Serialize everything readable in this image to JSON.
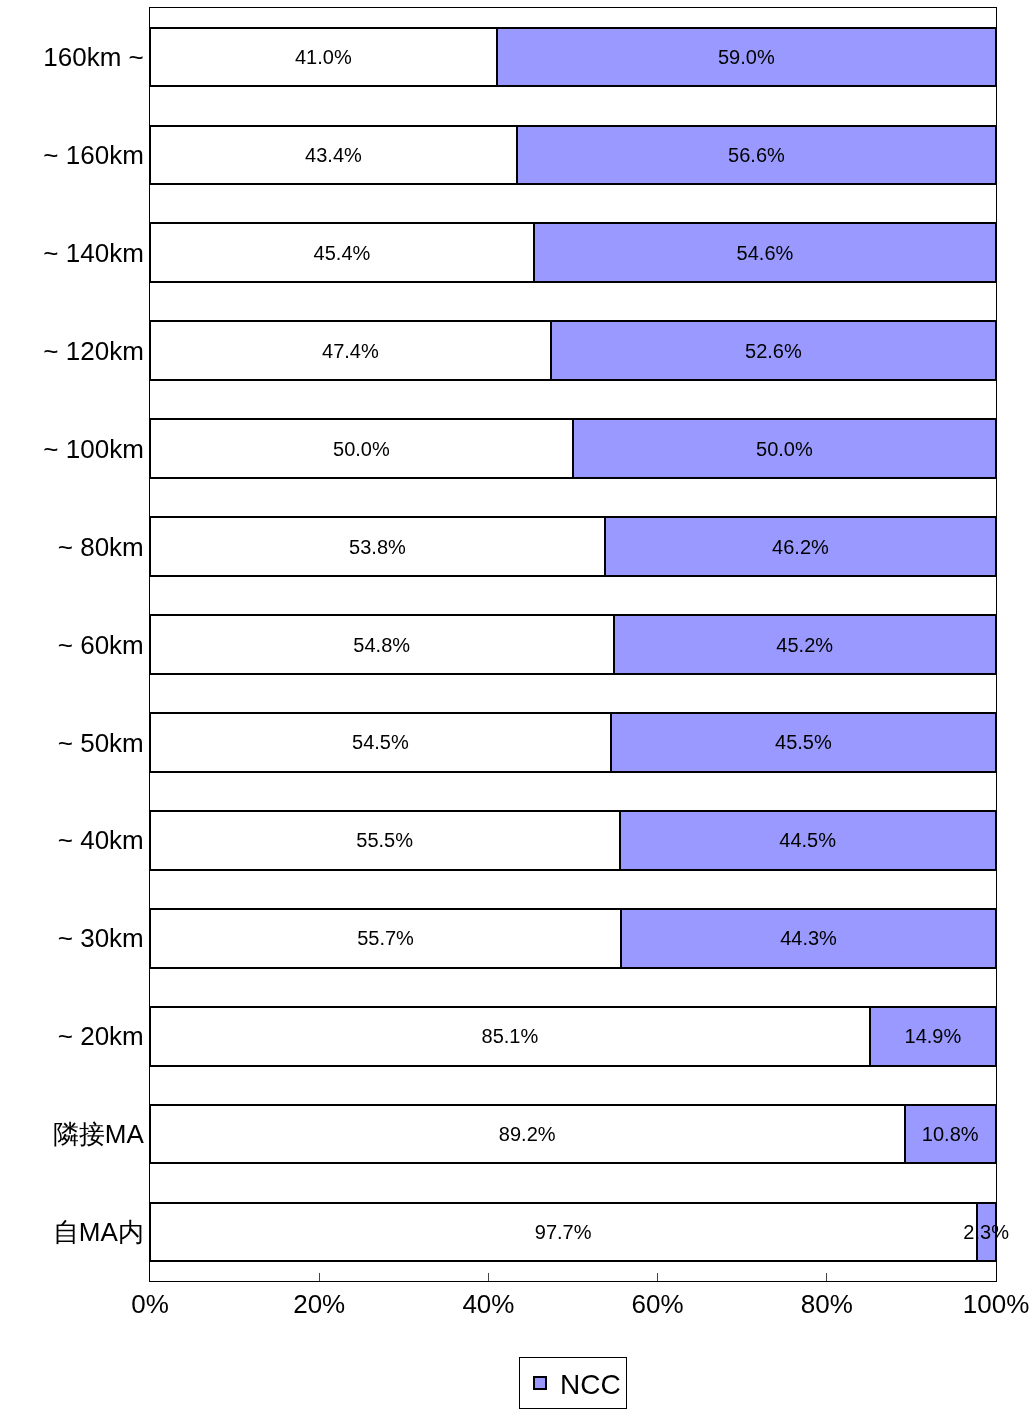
{
  "chart_data": {
    "type": "bar",
    "orientation": "horizontal",
    "stacked": true,
    "categories": [
      "160km ~",
      "~ 160km",
      "~ 140km",
      "~ 120km",
      "~ 100km",
      "~ 80km",
      "~ 60km",
      "~ 50km",
      "~ 40km",
      "~ 30km",
      "~ 20km",
      "隣接MA",
      "自MA内"
    ],
    "series": [
      {
        "color": "#ffffff",
        "values": [
          41.0,
          43.4,
          45.4,
          47.4,
          50.0,
          53.8,
          54.8,
          54.5,
          55.5,
          55.7,
          85.1,
          89.2,
          97.7
        ],
        "value_labels": [
          "41.0%",
          "43.4%",
          "45.4%",
          "47.4%",
          "50.0%",
          "53.8%",
          "54.8%",
          "54.5%",
          "55.5%",
          "55.7%",
          "85.1%",
          "89.2%",
          "97.7%"
        ]
      },
      {
        "name": "NCC",
        "color": "#9999ff",
        "values": [
          59.0,
          56.6,
          54.6,
          52.6,
          50.0,
          46.2,
          45.2,
          45.5,
          44.5,
          44.3,
          14.9,
          10.8,
          2.3
        ],
        "value_labels": [
          "59.0%",
          "56.6%",
          "54.6%",
          "52.6%",
          "50.0%",
          "46.2%",
          "45.2%",
          "45.5%",
          "44.5%",
          "44.3%",
          "14.9%",
          "10.8%",
          "2.3%"
        ]
      }
    ],
    "xlim": [
      0,
      100
    ],
    "xticks": [
      {
        "value": 0,
        "label": "0%"
      },
      {
        "value": 20,
        "label": "20%"
      },
      {
        "value": 40,
        "label": "40%"
      },
      {
        "value": 60,
        "label": "60%"
      },
      {
        "value": 80,
        "label": "80%"
      },
      {
        "value": 100,
        "label": "100%"
      }
    ],
    "legend": "bottom"
  }
}
